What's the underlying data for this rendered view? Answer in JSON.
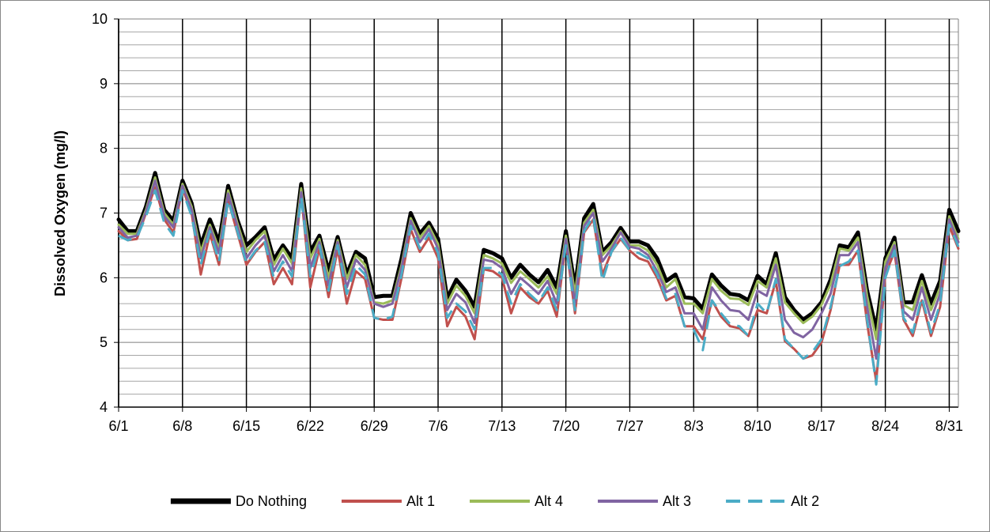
{
  "chart_data": {
    "type": "line",
    "title": "",
    "xlabel": "",
    "ylabel": "Dissolved Oxygen (mg/l)",
    "ylim": [
      4,
      10
    ],
    "xlim": [
      "6/1",
      "9/2"
    ],
    "y_ticks": [
      "4",
      "5",
      "6",
      "7",
      "8",
      "9",
      "10"
    ],
    "x_ticks": [
      "6/1",
      "6/8",
      "6/15",
      "6/22",
      "6/29",
      "7/6",
      "7/13",
      "7/20",
      "7/27",
      "8/3",
      "8/10",
      "8/17",
      "8/24",
      "8/31"
    ],
    "grid": {
      "major_x": true,
      "major_y": true,
      "minor_y_step": 0.2
    },
    "legend_position": "bottom",
    "x_dates": [
      "6/1",
      "6/2",
      "6/3",
      "6/4",
      "6/5",
      "6/6",
      "6/7",
      "6/8",
      "6/9",
      "6/10",
      "6/11",
      "6/12",
      "6/13",
      "6/14",
      "6/15",
      "6/16",
      "6/17",
      "6/18",
      "6/19",
      "6/20",
      "6/21",
      "6/22",
      "6/23",
      "6/24",
      "6/25",
      "6/26",
      "6/27",
      "6/28",
      "6/29",
      "6/30",
      "7/1",
      "7/2",
      "7/3",
      "7/4",
      "7/5",
      "7/6",
      "7/7",
      "7/8",
      "7/9",
      "7/10",
      "7/11",
      "7/12",
      "7/13",
      "7/14",
      "7/15",
      "7/16",
      "7/17",
      "7/18",
      "7/19",
      "7/20",
      "7/21",
      "7/22",
      "7/23",
      "7/24",
      "7/25",
      "7/26",
      "7/27",
      "7/28",
      "7/29",
      "7/30",
      "7/31",
      "8/1",
      "8/2",
      "8/3",
      "8/4",
      "8/5",
      "8/6",
      "8/7",
      "8/8",
      "8/9",
      "8/10",
      "8/11",
      "8/12",
      "8/13",
      "8/14",
      "8/15",
      "8/16",
      "8/17",
      "8/18",
      "8/19",
      "8/20",
      "8/21",
      "8/22",
      "8/23",
      "8/24",
      "8/25",
      "8/26",
      "8/27",
      "8/28",
      "8/29",
      "8/30",
      "8/31",
      "9/1"
    ],
    "series": [
      {
        "name": "Do Nothing",
        "color": "#000000",
        "width": 5,
        "dash": "",
        "values": [
          6.9,
          6.72,
          6.72,
          7.1,
          7.62,
          7.05,
          6.88,
          7.5,
          7.15,
          6.5,
          6.9,
          6.55,
          7.42,
          6.9,
          6.5,
          6.63,
          6.78,
          6.28,
          6.5,
          6.3,
          7.45,
          6.4,
          6.65,
          6.1,
          6.63,
          6.05,
          6.4,
          6.3,
          5.7,
          5.72,
          5.72,
          6.3,
          7.0,
          6.68,
          6.85,
          6.6,
          5.68,
          5.97,
          5.8,
          5.55,
          6.43,
          6.38,
          6.3,
          6.0,
          6.2,
          6.05,
          5.93,
          6.12,
          5.85,
          6.72,
          5.85,
          6.92,
          7.14,
          6.4,
          6.55,
          6.77,
          6.56,
          6.56,
          6.5,
          6.3,
          5.95,
          6.05,
          5.7,
          5.68,
          5.52,
          6.05,
          5.88,
          5.75,
          5.73,
          5.65,
          6.03,
          5.9,
          6.38,
          5.7,
          5.5,
          5.35,
          5.45,
          5.62,
          5.97,
          6.5,
          6.47,
          6.7,
          5.8,
          5.2,
          6.3,
          6.62,
          5.62,
          5.62,
          6.04,
          5.6,
          5.95,
          7.05,
          6.72
        ]
      },
      {
        "name": "Alt 1",
        "color": "#c0504d",
        "width": 3,
        "dash": "",
        "values": [
          6.72,
          6.58,
          6.6,
          7.0,
          7.4,
          6.9,
          6.7,
          7.38,
          7.0,
          6.05,
          6.68,
          6.2,
          7.2,
          6.7,
          6.2,
          6.4,
          6.55,
          5.9,
          6.15,
          5.9,
          7.3,
          5.85,
          6.45,
          5.7,
          6.45,
          5.6,
          6.1,
          5.98,
          5.38,
          5.35,
          5.35,
          6.0,
          6.75,
          6.4,
          6.62,
          6.3,
          5.25,
          5.55,
          5.4,
          5.05,
          6.13,
          6.1,
          6.0,
          5.45,
          5.85,
          5.7,
          5.6,
          5.8,
          5.4,
          6.55,
          5.45,
          6.7,
          6.9,
          6.05,
          6.4,
          6.6,
          6.42,
          6.3,
          6.25,
          6.0,
          5.65,
          5.72,
          5.25,
          5.25,
          5.05,
          5.65,
          5.4,
          5.25,
          5.22,
          5.1,
          5.5,
          5.45,
          5.95,
          5.02,
          4.9,
          4.75,
          4.8,
          5.0,
          5.5,
          6.2,
          6.2,
          6.42,
          5.3,
          4.4,
          6.05,
          6.4,
          5.35,
          5.1,
          5.65,
          5.1,
          5.55,
          6.8,
          6.45
        ]
      },
      {
        "name": "Alt 4",
        "color": "#9bbb59",
        "width": 3,
        "dash": "",
        "values": [
          6.82,
          6.68,
          6.68,
          7.05,
          7.55,
          7.0,
          6.82,
          7.45,
          7.1,
          6.4,
          6.82,
          6.45,
          7.35,
          6.85,
          6.4,
          6.58,
          6.72,
          6.2,
          6.45,
          6.22,
          7.38,
          6.3,
          6.6,
          6.0,
          6.58,
          5.98,
          6.35,
          6.2,
          5.62,
          5.6,
          5.65,
          6.2,
          6.92,
          6.62,
          6.8,
          6.52,
          5.6,
          5.88,
          5.72,
          5.45,
          6.35,
          6.3,
          6.22,
          5.92,
          6.1,
          5.98,
          5.85,
          6.02,
          5.75,
          6.65,
          5.75,
          6.85,
          7.05,
          6.35,
          6.5,
          6.72,
          6.5,
          6.5,
          6.42,
          6.2,
          5.85,
          5.98,
          5.6,
          5.6,
          5.45,
          5.98,
          5.8,
          5.68,
          5.67,
          5.58,
          5.95,
          5.85,
          6.3,
          5.62,
          5.45,
          5.3,
          5.4,
          5.58,
          5.9,
          6.45,
          6.42,
          6.62,
          5.72,
          5.05,
          6.25,
          6.55,
          5.58,
          5.5,
          5.95,
          5.5,
          5.85,
          6.95,
          6.6
        ]
      },
      {
        "name": "Alt 3",
        "color": "#8064a2",
        "width": 3,
        "dash": "",
        "values": [
          6.78,
          6.62,
          6.65,
          7.02,
          7.5,
          6.95,
          6.78,
          7.42,
          7.05,
          6.3,
          6.78,
          6.38,
          7.3,
          6.8,
          6.3,
          6.5,
          6.65,
          6.1,
          6.35,
          6.1,
          7.32,
          6.15,
          6.55,
          5.88,
          6.55,
          5.85,
          6.28,
          6.12,
          5.6,
          5.55,
          5.6,
          6.15,
          6.88,
          6.55,
          6.75,
          6.45,
          5.5,
          5.75,
          5.62,
          5.3,
          6.28,
          6.25,
          6.15,
          5.75,
          6.0,
          5.88,
          5.75,
          5.95,
          5.6,
          6.6,
          5.6,
          6.8,
          7.0,
          6.25,
          6.45,
          6.7,
          6.48,
          6.45,
          6.35,
          6.1,
          5.78,
          5.85,
          5.45,
          5.45,
          5.2,
          5.85,
          5.65,
          5.5,
          5.48,
          5.35,
          5.8,
          5.72,
          6.2,
          5.35,
          5.15,
          5.08,
          5.2,
          5.45,
          5.75,
          6.35,
          6.35,
          6.55,
          5.55,
          4.75,
          6.15,
          6.5,
          5.48,
          5.35,
          5.85,
          5.35,
          5.75,
          6.9,
          6.55
        ]
      },
      {
        "name": "Alt 2",
        "color": "#4bacc6",
        "width": 3,
        "dash": "18,10",
        "values": [
          6.65,
          6.58,
          6.62,
          6.95,
          7.35,
          6.85,
          6.65,
          7.35,
          6.95,
          6.2,
          6.72,
          6.25,
          7.2,
          6.72,
          6.22,
          6.42,
          6.55,
          6.0,
          6.25,
          6.02,
          7.25,
          6.02,
          6.5,
          5.8,
          6.5,
          5.75,
          6.2,
          6.05,
          5.38,
          5.35,
          5.4,
          6.05,
          6.8,
          6.45,
          6.68,
          6.38,
          5.38,
          5.6,
          5.48,
          5.2,
          6.15,
          6.15,
          6.05,
          5.6,
          5.9,
          5.75,
          5.62,
          5.85,
          5.5,
          6.5,
          5.5,
          6.72,
          6.95,
          5.95,
          6.4,
          6.62,
          6.42,
          6.38,
          6.3,
          6.05,
          5.68,
          5.75,
          5.25,
          5.2,
          4.88,
          5.65,
          5.45,
          5.28,
          5.25,
          5.1,
          5.6,
          5.45,
          5.98,
          5.05,
          4.9,
          4.75,
          4.85,
          5.05,
          5.55,
          6.18,
          6.25,
          6.42,
          5.35,
          4.35,
          6.0,
          6.42,
          5.38,
          5.15,
          5.7,
          5.15,
          5.6,
          6.82,
          6.48
        ]
      }
    ]
  }
}
